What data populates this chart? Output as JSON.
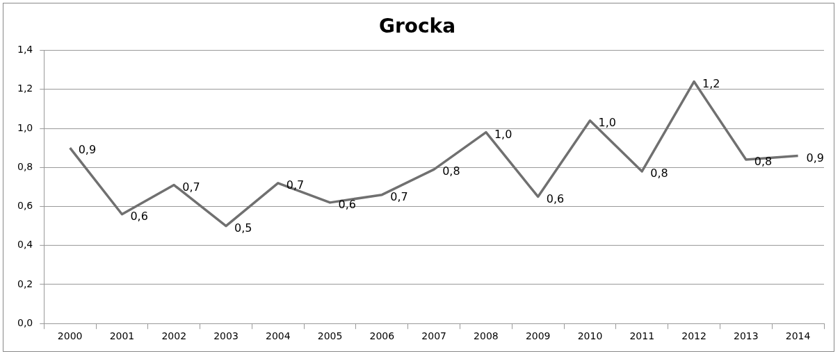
{
  "chart_data": {
    "type": "line",
    "title": "Grocka",
    "categories": [
      "2000",
      "2001",
      "2002",
      "2003",
      "2004",
      "2005",
      "2006",
      "2007",
      "2008",
      "2009",
      "2010",
      "2011",
      "2012",
      "2013",
      "2014"
    ],
    "series": [
      {
        "color": "#707070",
        "values": [
          0.9,
          0.56,
          0.71,
          0.5,
          0.72,
          0.62,
          0.66,
          0.79,
          0.98,
          0.65,
          1.04,
          0.78,
          1.24,
          0.84,
          0.86
        ],
        "value_labels": [
          "0,9",
          "0,6",
          "0,7",
          "0,5",
          "0,7",
          "0,6",
          "0,7",
          "0,8",
          "1,0",
          "0,6",
          "1,0",
          "0,8",
          "1,2",
          "0,8",
          "0,9"
        ]
      }
    ],
    "ylim": [
      0,
      1.4
    ],
    "yticks": [
      {
        "value": 0,
        "label": "0,0"
      },
      {
        "value": 0.2,
        "label": "0,2"
      },
      {
        "value": 0.4,
        "label": "0,4"
      },
      {
        "value": 0.6,
        "label": "0,6"
      },
      {
        "value": 0.8,
        "label": "0,8"
      },
      {
        "value": 1.0,
        "label": "1,0"
      },
      {
        "value": 1.2,
        "label": "1,2"
      },
      {
        "value": 1.4,
        "label": "1,4"
      }
    ],
    "grid": "y",
    "legend": false,
    "marker": "none",
    "line_style": "solid"
  }
}
